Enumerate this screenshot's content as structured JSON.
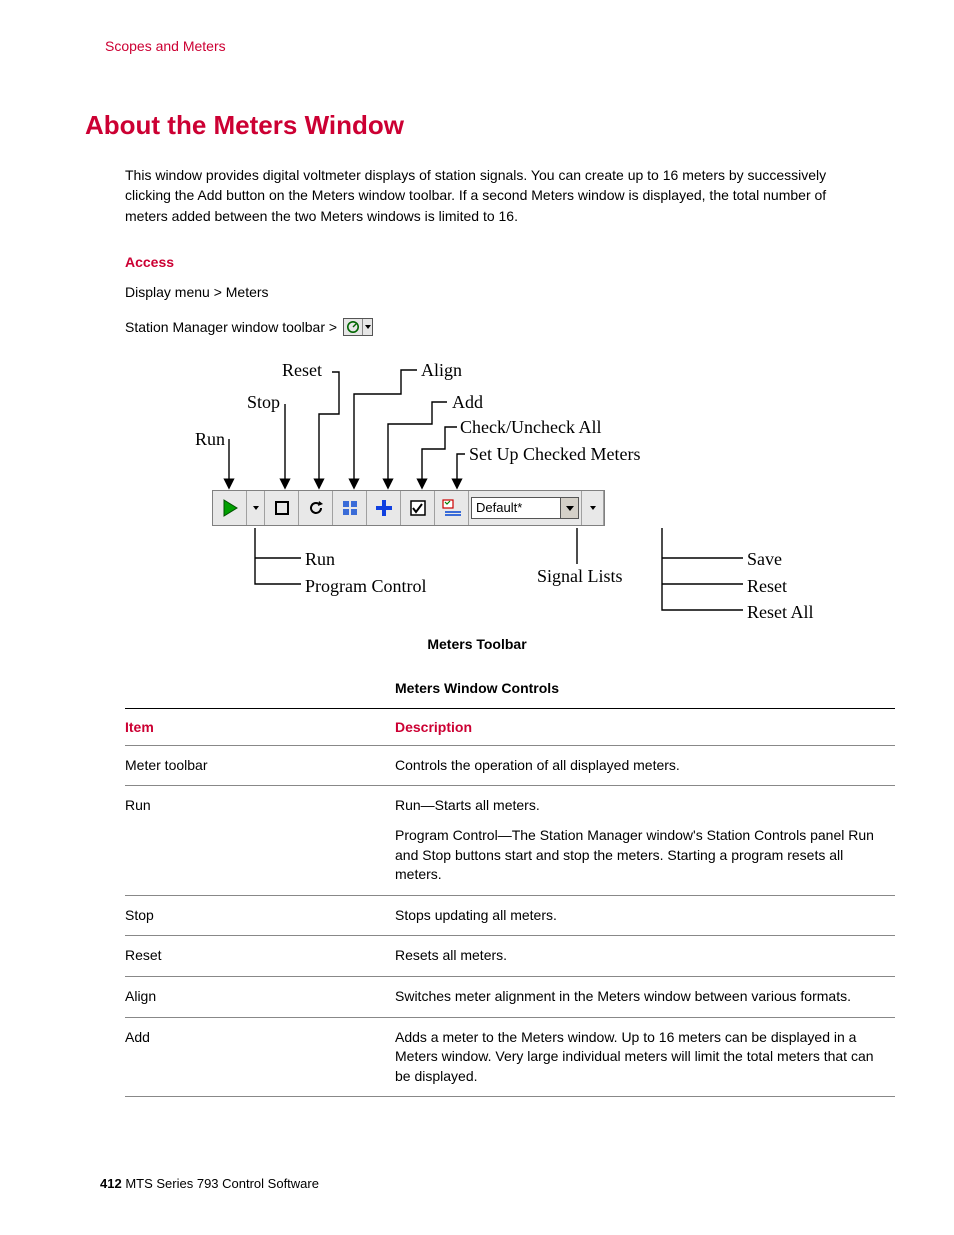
{
  "colors": {
    "brand": "#cc0033",
    "text": "#000000",
    "border": "#888888",
    "toolbar_bg": "#e8e8e8",
    "run_green": "#00a000",
    "add_blue": "#1040e0",
    "align_blue": "#3a6cd8"
  },
  "header": {
    "running_title": "Scopes and Meters"
  },
  "title": "About the Meters Window",
  "intro": "This window provides digital voltmeter displays of station signals. You can create up to 16 meters by successively clicking the Add button on the Meters window toolbar. If a second Meters window is displayed, the total number of meters added between the two Meters windows is limited to 16.",
  "access": {
    "heading": "Access",
    "line1": "Display menu > Meters",
    "line2_prefix": "Station Manager window toolbar >"
  },
  "diagram": {
    "caption": "Meters Toolbar",
    "combo_value": "Default*",
    "top_labels": {
      "run": "Run",
      "stop": "Stop",
      "reset": "Reset",
      "align": "Align",
      "add": "Add",
      "check": "Check/Uncheck All",
      "setup": "Set Up Checked Meters"
    },
    "bottom_labels": {
      "run": "Run",
      "program_control": "Program Control",
      "signal_lists": "Signal Lists",
      "save": "Save",
      "reset": "Reset",
      "reset_all": "Reset All"
    }
  },
  "table": {
    "caption": "Meters Window Controls",
    "headers": {
      "item": "Item",
      "desc": "Description"
    },
    "rows": [
      {
        "item": "Meter toolbar",
        "desc": [
          "Controls the operation of all displayed meters."
        ]
      },
      {
        "item": "Run",
        "desc": [
          "Run—Starts all meters.",
          "Program Control—The Station Manager window's Station Controls panel Run and Stop buttons start and stop the meters. Starting a program resets all meters."
        ]
      },
      {
        "item": "Stop",
        "desc": [
          "Stops updating all meters."
        ]
      },
      {
        "item": "Reset",
        "desc": [
          "Resets all meters."
        ]
      },
      {
        "item": "Align",
        "desc": [
          "Switches meter alignment in the Meters window between various formats."
        ]
      },
      {
        "item": "Add",
        "desc": [
          "Adds a meter to the Meters window. Up to 16 meters can be displayed in a Meters window. Very large individual meters will limit the total meters that can be displayed."
        ]
      }
    ]
  },
  "footer": {
    "page": "412",
    "book": "MTS Series 793 Control Software"
  }
}
